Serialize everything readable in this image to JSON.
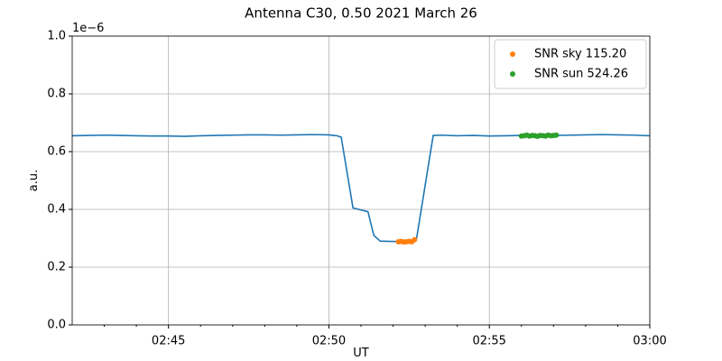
{
  "chart_data": {
    "type": "line",
    "title": "Antenna C30, 0.50 2021 March 26",
    "x_label": "UT",
    "y_label": "a.u.",
    "y_offset_label": "1e−6",
    "xlim": [
      "02:42:00",
      "03:00:00"
    ],
    "xticks": [
      "02:45",
      "02:50",
      "02:55",
      "03:00"
    ],
    "xminorticks": [
      "02:43",
      "02:44",
      "02:46",
      "02:47",
      "02:48",
      "02:49",
      "02:51",
      "02:52",
      "02:53",
      "02:54",
      "02:56",
      "02:57",
      "02:58",
      "02:59"
    ],
    "ylim": [
      0,
      1
    ],
    "yticks": [
      {
        "value": 0,
        "label": "0.0"
      },
      0.2,
      0.4,
      0.6,
      0.8,
      {
        "value": 1,
        "label": "1.0"
      }
    ],
    "grid": true,
    "legend": "upper right",
    "series": [
      {
        "kind": "line",
        "color": "#1f77b4",
        "x": [
          "02:42:00",
          "02:42:30",
          "02:43:00",
          "02:43:30",
          "02:44:00",
          "02:44:30",
          "02:45:00",
          "02:45:30",
          "02:46:00",
          "02:46:30",
          "02:47:00",
          "02:47:30",
          "02:48:00",
          "02:48:30",
          "02:49:00",
          "02:49:30",
          "02:50:00",
          "02:50:15",
          "02:50:23",
          "02:50:45",
          "02:51:13",
          "02:51:24",
          "02:51:36",
          "02:52:00",
          "02:52:36",
          "02:52:44",
          "02:53:15",
          "02:53:30",
          "02:54:00",
          "02:54:30",
          "02:55:00",
          "02:55:30",
          "02:56:00",
          "02:56:30",
          "02:57:00",
          "02:57:30",
          "02:58:00",
          "02:58:30",
          "02:59:00",
          "02:59:30",
          "03:00:00"
        ],
        "values": [
          0.655,
          0.656,
          0.657,
          0.656,
          0.655,
          0.654,
          0.654,
          0.653,
          0.655,
          0.656,
          0.657,
          0.658,
          0.658,
          0.657,
          0.658,
          0.659,
          0.658,
          0.655,
          0.65,
          0.405,
          0.392,
          0.31,
          0.29,
          0.289,
          0.288,
          0.3,
          0.656,
          0.657,
          0.655,
          0.656,
          0.654,
          0.655,
          0.656,
          0.655,
          0.656,
          0.657,
          0.658,
          0.659,
          0.658,
          0.657,
          0.655
        ]
      },
      {
        "kind": "scatter",
        "name": "SNR sky 115.20",
        "color": "#ff7f0e",
        "x": [
          "02:52:10",
          "02:52:15",
          "02:52:20",
          "02:52:25",
          "02:52:30",
          "02:52:35",
          "02:52:40"
        ],
        "values": [
          0.288,
          0.289,
          0.287,
          0.288,
          0.289,
          0.288,
          0.295
        ]
      },
      {
        "kind": "scatter",
        "name": "SNR sun 524.26",
        "color": "#2ca02c",
        "x": [
          "02:56:00",
          "02:56:05",
          "02:56:10",
          "02:56:15",
          "02:56:20",
          "02:56:25",
          "02:56:30",
          "02:56:35",
          "02:56:40",
          "02:56:45",
          "02:56:50",
          "02:56:55",
          "02:57:00",
          "02:57:05"
        ],
        "values": [
          0.654,
          0.655,
          0.657,
          0.654,
          0.656,
          0.655,
          0.653,
          0.656,
          0.655,
          0.654,
          0.657,
          0.655,
          0.656,
          0.657
        ]
      }
    ]
  }
}
